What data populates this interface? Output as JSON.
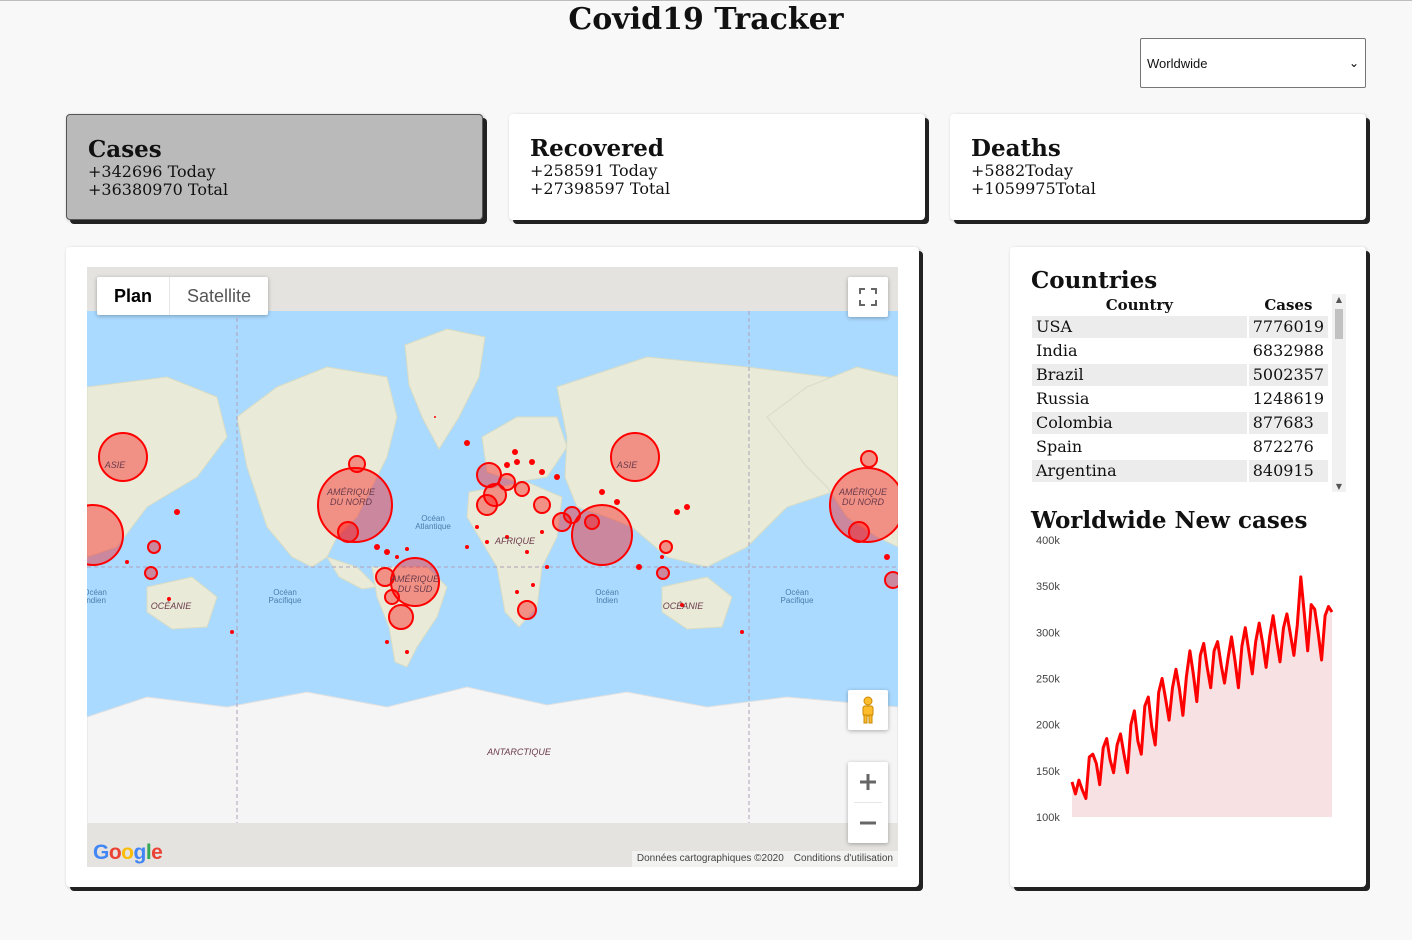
{
  "app": {
    "title": "Covid19 Tracker",
    "country_select": {
      "value": "Worldwide"
    }
  },
  "stats": [
    {
      "title": "Cases",
      "today": "+342696 Today",
      "total": "+36380970 Total",
      "active": true
    },
    {
      "title": "Recovered",
      "today": "+258591 Today",
      "total": "+27398597 Total",
      "active": false
    },
    {
      "title": "Deaths",
      "today": "+5882Today",
      "total": "+1059975Total",
      "active": false
    }
  ],
  "map": {
    "type_plan": "Plan",
    "type_satellite": "Satellite",
    "google": "Google",
    "attribution_data": "Données cartographiques ©2020",
    "attribution_terms": "Conditions d'utilisation",
    "labels": {
      "asia_left": "ASIE",
      "asia_right": "ASIE",
      "north_america": "AMÉRIQUE\nDU NORD",
      "north_america_right": "AMÉRIQUE\nDU NORD",
      "south_america": "AMÉRIQUE\nDU SUD",
      "africa": "AFRIQUE",
      "oceania_left": "OCÉANIE",
      "oceania_right": "OCÉANIE",
      "antarctica": "ANTARCTIQUE",
      "atlantic": "Océan\nAtlantique",
      "pacific_left": "Océan\nPacifique",
      "pacific_right": "Océan\nPacifique",
      "indian": "Océan\nIndien",
      "indian_left": "Océan\nIndien"
    },
    "colors": {
      "water": "#aadaff",
      "land": "#e9ead8",
      "ice": "#f5f5f5",
      "circle": "#ff0000"
    }
  },
  "countries": {
    "title": "Countries",
    "col_country": "Country",
    "col_cases": "Cases",
    "rows": [
      {
        "country": "USA",
        "cases": "7776019"
      },
      {
        "country": "India",
        "cases": "6832988"
      },
      {
        "country": "Brazil",
        "cases": "5002357"
      },
      {
        "country": "Russia",
        "cases": "1248619"
      },
      {
        "country": "Colombia",
        "cases": "877683"
      },
      {
        "country": "Spain",
        "cases": "872276"
      },
      {
        "country": "Argentina",
        "cases": "840915"
      }
    ]
  },
  "chart_data": {
    "type": "area",
    "title": "Worldwide New cases",
    "ylim": [
      100000,
      400000
    ],
    "yticks": [
      100000,
      150000,
      200000,
      250000,
      300000,
      350000,
      400000
    ],
    "ytick_labels": [
      "100k",
      "150k",
      "200k",
      "250k",
      "300k",
      "350k",
      "400k"
    ],
    "line_color": "#ff0000",
    "fill_color": "#f8e1e3",
    "values": [
      138000,
      125000,
      140000,
      129000,
      120000,
      165000,
      168000,
      158000,
      135000,
      175000,
      185000,
      162000,
      148000,
      178000,
      190000,
      168000,
      148000,
      200000,
      215000,
      182000,
      168000,
      220000,
      230000,
      198000,
      178000,
      235000,
      250000,
      228000,
      205000,
      240000,
      260000,
      238000,
      210000,
      252000,
      280000,
      255000,
      225000,
      275000,
      288000,
      262000,
      240000,
      280000,
      290000,
      265000,
      245000,
      272000,
      295000,
      270000,
      240000,
      285000,
      305000,
      280000,
      255000,
      290000,
      310000,
      288000,
      262000,
      295000,
      318000,
      292000,
      268000,
      305000,
      320000,
      298000,
      275000,
      308000,
      360000,
      320000,
      280000,
      330000,
      325000,
      300000,
      270000,
      318000,
      328000,
      322000
    ]
  }
}
